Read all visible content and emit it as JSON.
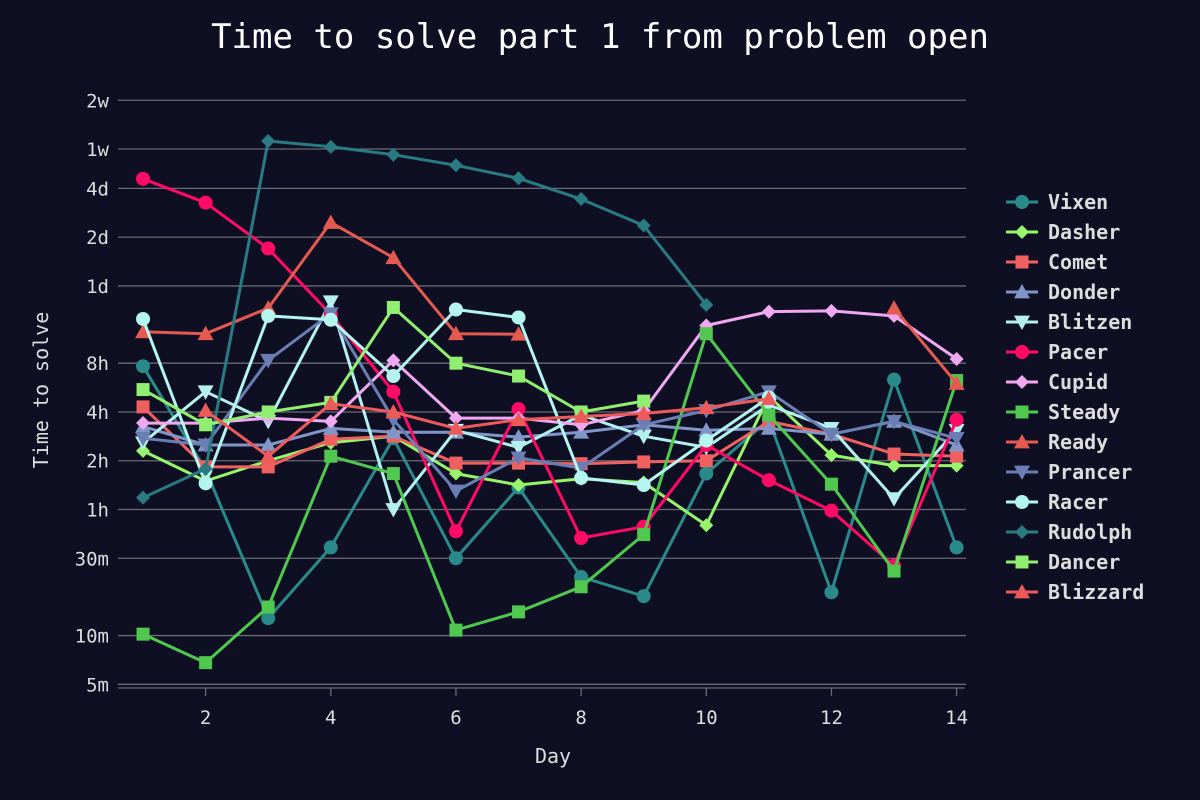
{
  "chart_data": {
    "type": "line",
    "title": "Time to solve part 1 from problem open",
    "xlabel": "Day",
    "ylabel": "Time to solve",
    "y_scale": "log",
    "y_unit": "minutes",
    "xlim": [
      0.6,
      14.15
    ],
    "ylim": [
      4,
      31000
    ],
    "x_ticks": [
      2,
      4,
      6,
      8,
      10,
      12,
      14
    ],
    "y_ticks": [
      {
        "value": 5,
        "label": "5m"
      },
      {
        "value": 10,
        "label": "10m"
      },
      {
        "value": 30,
        "label": "30m"
      },
      {
        "value": 60,
        "label": "1h"
      },
      {
        "value": 120,
        "label": "2h"
      },
      {
        "value": 240,
        "label": "4h"
      },
      {
        "value": 480,
        "label": "8h"
      },
      {
        "value": 1440,
        "label": "1d"
      },
      {
        "value": 2880,
        "label": "2d"
      },
      {
        "value": 5760,
        "label": "4d"
      },
      {
        "value": 10080,
        "label": "1w"
      },
      {
        "value": 20160,
        "label": "2w"
      }
    ],
    "grid": true,
    "legend_position": "right",
    "x": [
      1,
      2,
      3,
      4,
      5,
      6,
      7,
      8,
      9,
      10,
      11,
      12,
      13,
      14
    ],
    "series": [
      {
        "name": "Vixen",
        "color": "#2a8a8a",
        "marker": "circle",
        "values": [
          460,
          105,
          12.8,
          35,
          165,
          30,
          82,
          23,
          17.5,
          100,
          215,
          18.5,
          380,
          35
        ]
      },
      {
        "name": "Dasher",
        "color": "#96f56a",
        "marker": "diamond",
        "values": [
          138,
          90,
          120,
          155,
          170,
          100,
          85,
          93,
          88,
          48,
          300,
          130,
          112,
          112
        ]
      },
      {
        "name": "Comet",
        "color": "#f06060",
        "marker": "square",
        "values": [
          258,
          110,
          110,
          163,
          170,
          116,
          116,
          115,
          118,
          120,
          210,
          175,
          132,
          128
        ]
      },
      {
        "name": "Donder",
        "color": "#8096c8",
        "marker": "triangle-up",
        "values": [
          195,
          150,
          150,
          190,
          180,
          180,
          168,
          180,
          200,
          185,
          190,
          175,
          210,
          150
        ]
      },
      {
        "name": "Blitzen",
        "color": "#b4f0f0",
        "marker": "triangle-down",
        "values": [
          155,
          320,
          210,
          1150,
          60,
          185,
          145,
          230,
          170,
          145,
          265,
          190,
          70,
          185
        ]
      },
      {
        "name": "Pacer",
        "color": "#ff0a64",
        "marker": "circle",
        "values": [
          6600,
          4700,
          2450,
          960,
          320,
          44,
          250,
          40,
          47,
          150,
          91,
          59,
          27,
          215
        ]
      },
      {
        "name": "Cupid",
        "color": "#f0a8f0",
        "marker": "diamond",
        "values": [
          205,
          205,
          220,
          210,
          500,
          220,
          220,
          200,
          245,
          820,
          1000,
          1010,
          940,
          510
        ]
      },
      {
        "name": "Steady",
        "color": "#50c850",
        "marker": "square",
        "values": [
          10.2,
          6.8,
          15,
          128,
          100,
          10.8,
          14,
          20,
          42,
          730,
          230,
          86,
          25,
          375
        ]
      },
      {
        "name": "Ready",
        "color": "#e55a50",
        "marker": "triangle-up",
        "values": [
          750,
          730,
          1050,
          3550,
          2150,
          730,
          725,
          null,
          null,
          null,
          null,
          null,
          1050,
          360
        ]
      },
      {
        "name": "Prancer",
        "color": "#6a7eb4",
        "marker": "triangle-down",
        "values": [
          165,
          150,
          500,
          970,
          215,
          78,
          125,
          108,
          200,
          245,
          320,
          175,
          210,
          165
        ]
      },
      {
        "name": "Racer",
        "color": "#b4f5f0",
        "marker": "circle",
        "values": [
          900,
          87,
          940,
          890,
          400,
          1030,
          920,
          94,
          85,
          160,
          295,
          null,
          null,
          null
        ]
      },
      {
        "name": "Rudolph",
        "color": "#2a7a82",
        "marker": "diamond",
        "values": [
          71,
          107,
          11300,
          10400,
          9300,
          8000,
          6650,
          4950,
          3400,
          1100,
          null,
          null,
          null,
          null
        ]
      },
      {
        "name": "Dancer",
        "color": "#90ee70",
        "marker": "square",
        "values": [
          330,
          200,
          240,
          275,
          1060,
          480,
          400,
          240,
          280,
          null,
          null,
          null,
          null,
          null
        ]
      },
      {
        "name": "Blizzard",
        "color": "#ee5a5a",
        "marker": "triangle-up",
        "values": [
          null,
          245,
          128,
          270,
          240,
          190,
          215,
          225,
          235,
          255,
          290,
          null,
          null,
          null
        ]
      }
    ]
  }
}
